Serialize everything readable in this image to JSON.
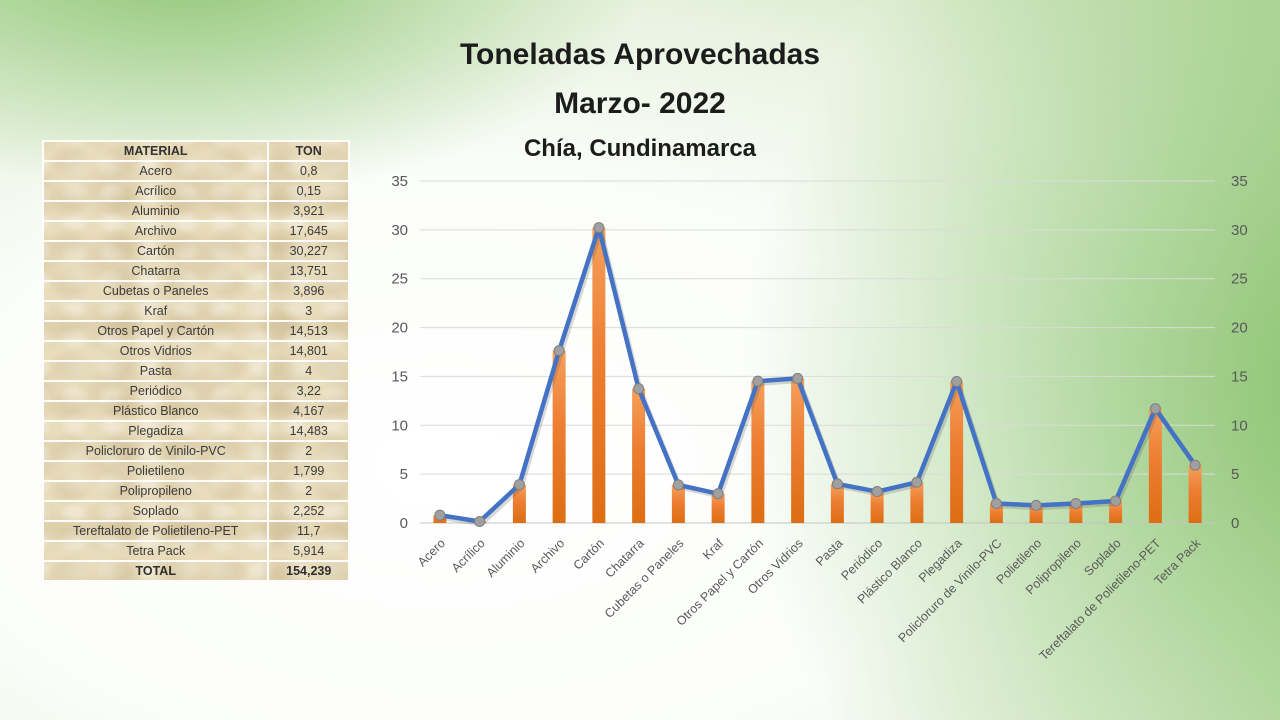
{
  "slide": {
    "title_line1": "Toneladas Aprovechadas",
    "title_line2": "Marzo- 2022",
    "subtitle": "Chía, Cundinamarca"
  },
  "table": {
    "headers": [
      "MATERIAL",
      "TON"
    ],
    "rows": [
      [
        "Acero",
        "0,8"
      ],
      [
        "Acrílico",
        "0,15"
      ],
      [
        "Aluminio",
        "3,921"
      ],
      [
        "Archivo",
        "17,645"
      ],
      [
        "Cartón",
        "30,227"
      ],
      [
        "Chatarra",
        "13,751"
      ],
      [
        "Cubetas o Paneles",
        "3,896"
      ],
      [
        "Kraf",
        "3"
      ],
      [
        "Otros Papel y Cartón",
        "14,513"
      ],
      [
        "Otros Vidrios",
        "14,801"
      ],
      [
        "Pasta",
        "4"
      ],
      [
        "Periódico",
        "3,22"
      ],
      [
        "Plástico Blanco",
        "4,167"
      ],
      [
        "Plegadiza",
        "14,483"
      ],
      [
        "Policloruro de Vinilo-PVC",
        "2"
      ],
      [
        "Polietileno",
        "1,799"
      ],
      [
        "Polipropileno",
        "2"
      ],
      [
        "Soplado",
        "2,252"
      ],
      [
        "Tereftalato de Polietileno-PET",
        "11,7"
      ],
      [
        "Tetra Pack",
        "5,914"
      ]
    ],
    "total": [
      "TOTAL",
      "154,239"
    ]
  },
  "chart_data": {
    "type": "bar",
    "subtype": "bar+line combo, same values on both series",
    "title": "Toneladas Aprovechadas Marzo- 2022, Chía, Cundinamarca",
    "categories": [
      "Acero",
      "Acrílico",
      "Aluminio",
      "Archivo",
      "Cartón",
      "Chatarra",
      "Cubetas o Paneles",
      "Kraf",
      "Otros Papel y Cartón",
      "Otros Vidrios",
      "Pasta",
      "Periódico",
      "Plástico Blanco",
      "Plegadiza",
      "Policloruro de Vinilo-PVC",
      "Polietileno",
      "Polipropileno",
      "Soplado",
      "Tereftalato de Polietileno-PET",
      "Tetra Pack"
    ],
    "series": [
      {
        "name": "TON (bars)",
        "type": "bar",
        "values": [
          0.8,
          0.15,
          3.921,
          17.645,
          30.227,
          13.751,
          3.896,
          3,
          14.513,
          14.801,
          4,
          3.22,
          4.167,
          14.483,
          2,
          1.799,
          2,
          2.252,
          11.7,
          5.914
        ]
      },
      {
        "name": "TON (line)",
        "type": "line",
        "values": [
          0.8,
          0.15,
          3.921,
          17.645,
          30.227,
          13.751,
          3.896,
          3,
          14.513,
          14.801,
          4,
          3.22,
          4.167,
          14.483,
          2,
          1.799,
          2,
          2.252,
          11.7,
          5.914
        ]
      }
    ],
    "xlabel": "",
    "ylabel": "",
    "ylim": [
      0,
      35
    ],
    "yticks": [
      0,
      5,
      10,
      15,
      20,
      25,
      30,
      35
    ],
    "grid": true,
    "right_axis_mirror": true,
    "legend": "none",
    "x_label_rotation_deg": -45,
    "colors": {
      "bar": "#ED7D31",
      "bar_top": "#F5A05B",
      "bar_bottom": "#DD6E13",
      "line": "#4472C4",
      "marker": "#A0A0A0",
      "marker_border": "#7F7F7F",
      "grid": "#D9DCD7",
      "axis": "#C3C6C1",
      "tick_text": "#595959"
    }
  }
}
